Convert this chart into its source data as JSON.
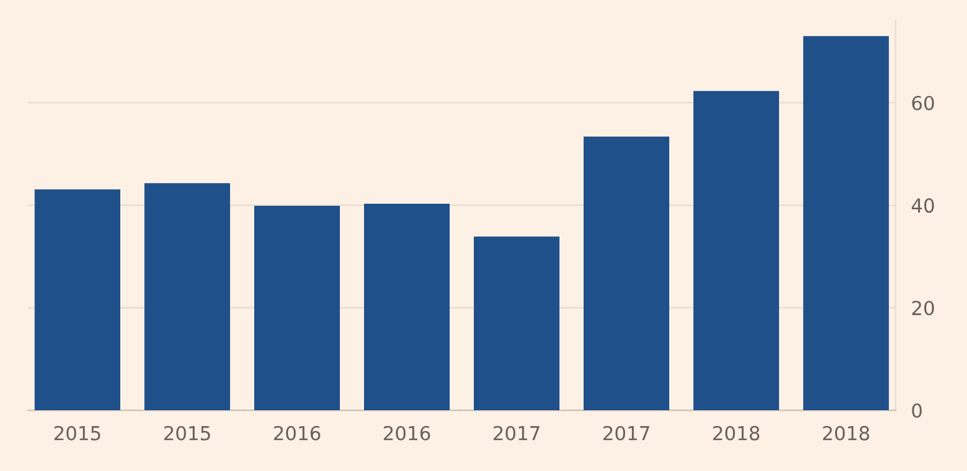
{
  "chart_data": {
    "type": "bar",
    "categories": [
      "2015",
      "2015",
      "2016",
      "2016",
      "2017",
      "2017",
      "2018",
      "2018"
    ],
    "values": [
      43.1,
      44.3,
      39.9,
      40.3,
      33.9,
      53.4,
      62.3,
      73.0
    ],
    "color": "#1f5089",
    "ylim": [
      0,
      76
    ],
    "yticks": [
      0,
      20,
      40,
      60
    ],
    "grid": "y"
  }
}
